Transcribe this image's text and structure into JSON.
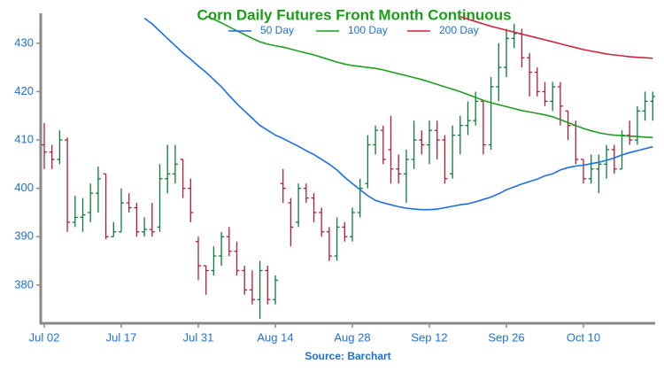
{
  "chart_data": {
    "type": "ohlc",
    "title": "Corn Daily Futures Front Month Continuous",
    "source": "Source: Barchart",
    "categories": [
      "Jul 02",
      null,
      null,
      null,
      null,
      null,
      null,
      null,
      null,
      null,
      "Jul 17",
      null,
      null,
      null,
      null,
      null,
      null,
      null,
      null,
      null,
      "Jul 31",
      null,
      null,
      null,
      null,
      null,
      null,
      null,
      null,
      null,
      "Aug 14",
      null,
      null,
      null,
      null,
      null,
      null,
      null,
      null,
      null,
      "Aug 28",
      null,
      null,
      null,
      null,
      null,
      null,
      null,
      null,
      null,
      "Sep 12",
      null,
      null,
      null,
      null,
      null,
      null,
      null,
      null,
      null,
      "Sep 26",
      null,
      null,
      null,
      null,
      null,
      null,
      null,
      null,
      null,
      "Oct 10",
      null,
      null,
      null,
      null,
      null,
      null,
      null,
      null,
      null
    ],
    "open": [
      409,
      407.5,
      406,
      410,
      393,
      394,
      395,
      399,
      403,
      390,
      391,
      397,
      396,
      391,
      391.5,
      392,
      402,
      403,
      406,
      400,
      389,
      384,
      383,
      386,
      390,
      387,
      383,
      379,
      377,
      383,
      377,
      401,
      397,
      393,
      400,
      398,
      395,
      391,
      386,
      392,
      390,
      395,
      401,
      409,
      412,
      408,
      404,
      403,
      406,
      410,
      409,
      412,
      410,
      403,
      411,
      413,
      414,
      418,
      409,
      421,
      425,
      431,
      432,
      427,
      424,
      420,
      418,
      421,
      416,
      413,
      406,
      402,
      404,
      405,
      408,
      404,
      411,
      410,
      416,
      418
    ],
    "high": [
      413.5,
      409,
      412,
      410.5,
      398.5,
      398,
      401,
      404.5,
      403,
      393,
      400,
      399,
      397,
      394,
      397,
      405,
      409,
      409,
      406,
      402,
      390,
      384,
      388,
      391,
      392,
      389,
      384,
      383,
      385,
      384,
      382,
      404,
      398,
      401,
      401,
      399,
      396,
      392,
      394,
      393,
      396,
      402,
      411,
      413,
      413,
      415,
      407,
      408,
      414,
      412,
      414,
      414,
      411,
      413,
      415,
      418,
      420,
      418,
      423,
      430,
      433,
      434,
      433,
      428,
      425,
      422,
      422,
      422,
      416,
      414,
      406,
      407,
      407,
      409,
      409,
      412,
      414,
      417,
      420,
      420
    ],
    "low": [
      404,
      404,
      405,
      391,
      392,
      391,
      393,
      395,
      389.5,
      390,
      391,
      395,
      390,
      390,
      390,
      391,
      399,
      401,
      398,
      393,
      381,
      378,
      382,
      384,
      386,
      382,
      378,
      376,
      373,
      376,
      376,
      397,
      388,
      392,
      397,
      393,
      390,
      385,
      385,
      389,
      389,
      394,
      400,
      407,
      405,
      401,
      401,
      397,
      404,
      407,
      405,
      406,
      401,
      402,
      407,
      411,
      413,
      407,
      408,
      418,
      423,
      429,
      425,
      419,
      419,
      417,
      416,
      413,
      410,
      405,
      401,
      401,
      399,
      402,
      403,
      404,
      409,
      409,
      414,
      414
    ],
    "close": [
      407.5,
      406,
      410,
      393,
      394,
      394.5,
      399,
      402,
      390,
      391,
      397,
      396,
      391,
      391.5,
      391,
      402,
      403,
      405,
      400,
      395,
      384,
      383,
      386,
      390,
      387,
      383,
      379,
      377,
      383,
      377,
      381,
      400,
      392,
      400,
      398,
      395,
      391,
      386,
      392,
      390,
      395,
      400,
      409,
      412,
      406,
      404,
      403,
      406,
      410,
      409,
      412,
      410,
      402,
      411,
      413,
      414,
      418,
      409,
      421,
      425,
      431,
      432,
      427,
      424,
      420,
      418,
      421,
      417,
      413,
      406,
      402,
      404,
      405,
      408,
      404,
      411,
      410,
      416,
      418,
      419
    ],
    "up_color": "#0d7a3a",
    "down_color": "#b01c3a",
    "series": [
      {
        "name": "50 Day",
        "color": "#1a6ee6",
        "values": [
          null,
          null,
          null,
          null,
          null,
          null,
          null,
          null,
          null,
          null,
          null,
          null,
          null,
          435.2,
          434,
          432.5,
          431,
          429.5,
          428,
          426.7,
          425.3,
          424,
          422.5,
          421,
          419.2,
          417.5,
          416,
          414.5,
          413,
          412,
          411,
          410.3,
          409.5,
          408.7,
          407.8,
          407,
          406,
          405,
          403.8,
          402.3,
          401,
          399.7,
          398.5,
          397.5,
          397,
          396.6,
          396.2,
          395.9,
          395.7,
          395.6,
          395.6,
          395.7,
          396,
          396.3,
          396.6,
          396.8,
          397.2,
          397.7,
          398.2,
          398.9,
          399.7,
          400.3,
          400.9,
          401.4,
          401.9,
          402.6,
          403,
          403.8,
          404.3,
          404.6,
          404.8,
          405.1,
          405.4,
          405.8,
          406.3,
          406.9,
          407.4,
          407.8,
          408.2,
          408.6
        ]
      },
      {
        "name": "100 Day",
        "color": "#1f9e1f",
        "values": [
          null,
          null,
          null,
          null,
          null,
          null,
          null,
          null,
          null,
          null,
          null,
          null,
          null,
          null,
          null,
          null,
          null,
          null,
          null,
          null,
          null,
          435.6,
          435,
          434.2,
          433.4,
          432.6,
          431.8,
          431,
          430.3,
          429.8,
          429.5,
          429.2,
          428.8,
          428.4,
          428,
          427.6,
          427.1,
          426.6,
          426.1,
          425.7,
          425.4,
          425.2,
          425,
          424.8,
          424.5,
          424.1,
          423.7,
          423.3,
          422.9,
          422.5,
          422,
          421.5,
          421,
          420.5,
          420,
          419.4,
          418.8,
          418.2,
          417.7,
          417.3,
          416.9,
          416.5,
          416.1,
          415.8,
          415.5,
          415.2,
          414.8,
          414.2,
          413.6,
          413,
          412.4,
          411.9,
          411.5,
          411.2,
          411,
          410.9,
          410.8,
          410.7,
          410.6,
          410.5
        ]
      },
      {
        "name": "200 Day",
        "color": "#d0243f",
        "values": [
          null,
          null,
          null,
          null,
          null,
          null,
          null,
          null,
          null,
          null,
          null,
          null,
          null,
          null,
          null,
          null,
          null,
          null,
          null,
          null,
          null,
          null,
          null,
          null,
          null,
          null,
          null,
          null,
          null,
          null,
          null,
          null,
          null,
          null,
          null,
          null,
          null,
          null,
          null,
          null,
          null,
          null,
          null,
          null,
          null,
          null,
          null,
          null,
          null,
          null,
          null,
          null,
          null,
          null,
          435.5,
          435,
          434.5,
          434,
          433.5,
          433.1,
          432.7,
          432.3,
          431.9,
          431.5,
          431.1,
          430.7,
          430.3,
          429.9,
          429.5,
          429.1,
          428.7,
          428.4,
          428.1,
          427.8,
          427.6,
          427.4,
          427.2,
          427.1,
          427,
          426.9
        ]
      }
    ],
    "ylim": [
      372.1,
      436.2
    ],
    "yticks": [
      380,
      390,
      400,
      410,
      420,
      430
    ],
    "legend": "top"
  }
}
